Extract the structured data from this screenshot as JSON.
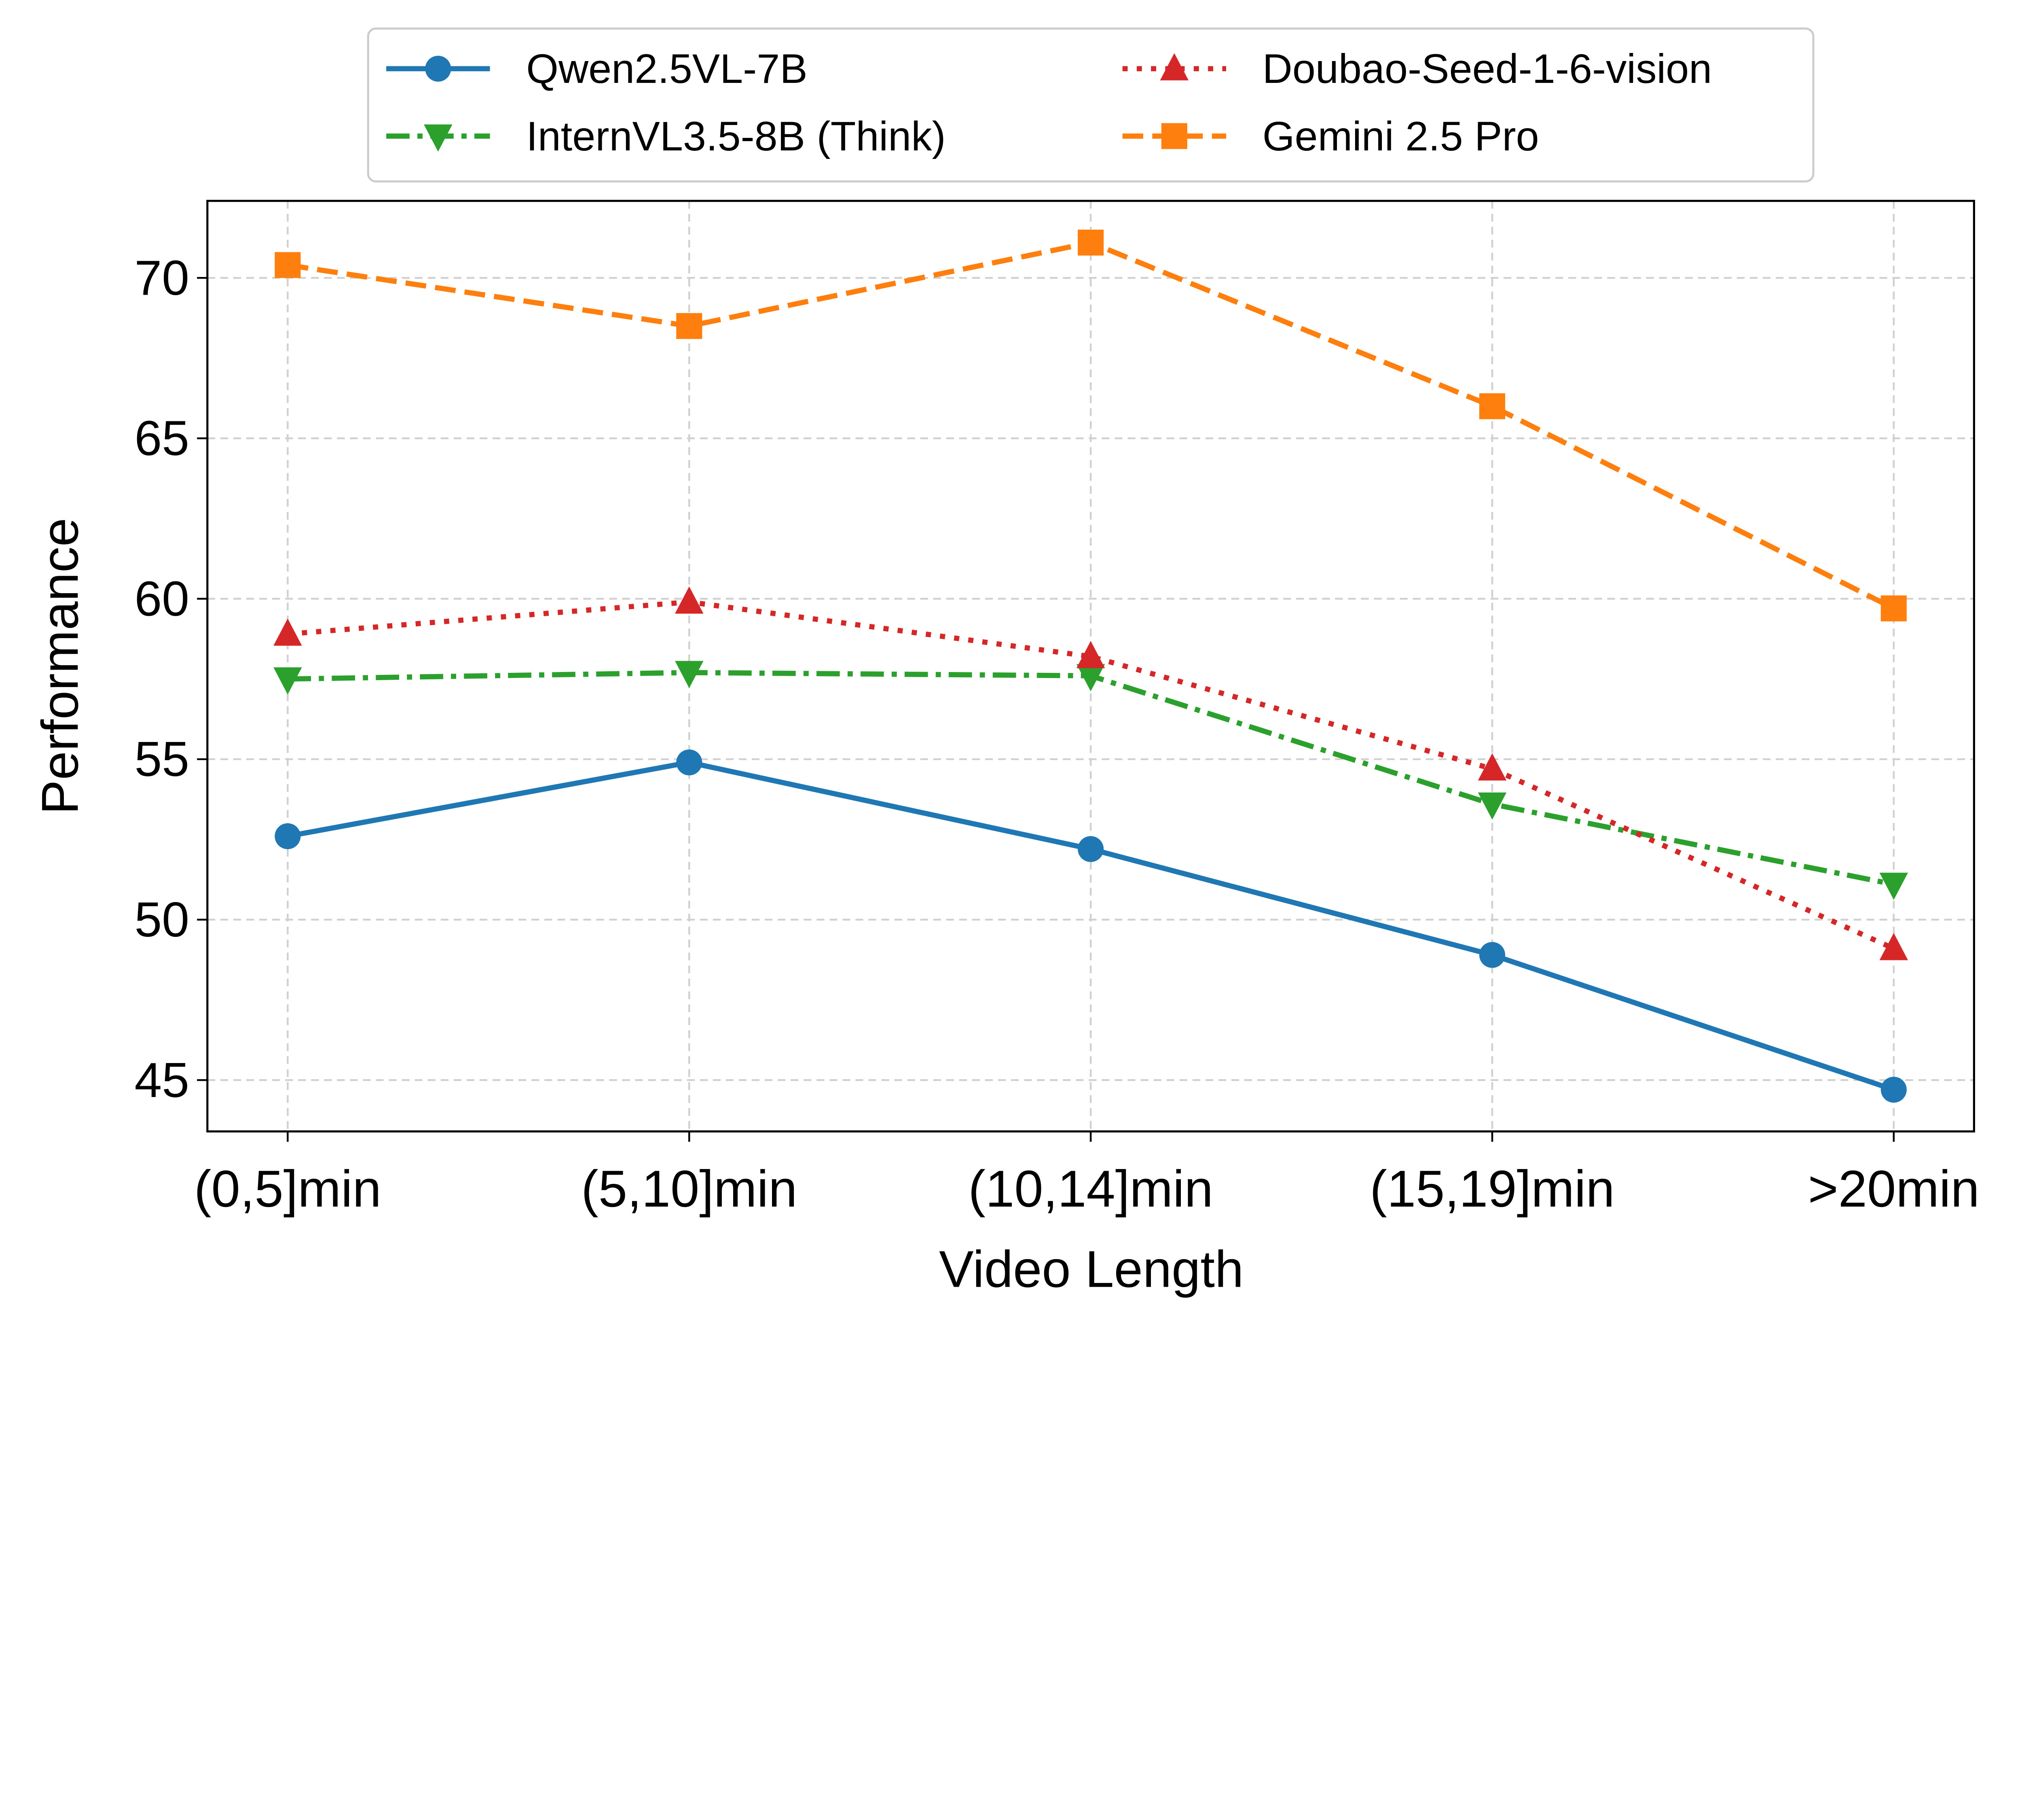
{
  "chart_data": {
    "type": "line",
    "title": "",
    "xlabel": "Video Length",
    "ylabel": "Performance",
    "categories": [
      "(0,5]min",
      "(5,10]min",
      "(10,14]min",
      "(15,19]min",
      ">20min"
    ],
    "ylim": [
      43.4,
      72.4
    ],
    "yticks": [
      45,
      50,
      55,
      60,
      65,
      70
    ],
    "grid": true,
    "legend_position": "top-center-outside",
    "series": [
      {
        "name": "Qwen2.5VL-7B",
        "color": "#1f77b4",
        "marker": "circle",
        "linestyle": "solid",
        "values": [
          52.6,
          54.9,
          52.2,
          48.9,
          44.7
        ]
      },
      {
        "name": "InternVL3.5-8B (Think)",
        "color": "#2ca02c",
        "marker": "triangle-down",
        "linestyle": "dashdot",
        "values": [
          57.5,
          57.7,
          57.6,
          53.6,
          51.1
        ]
      },
      {
        "name": "Doubao-Seed-1-6-vision",
        "color": "#d62728",
        "marker": "triangle-up",
        "linestyle": "dotted",
        "values": [
          58.9,
          59.9,
          58.2,
          54.7,
          49.1
        ]
      },
      {
        "name": "Gemini 2.5 Pro",
        "color": "#ff7f0e",
        "marker": "square",
        "linestyle": "dashed",
        "values": [
          70.4,
          68.5,
          71.1,
          66.0,
          59.7
        ]
      }
    ]
  }
}
